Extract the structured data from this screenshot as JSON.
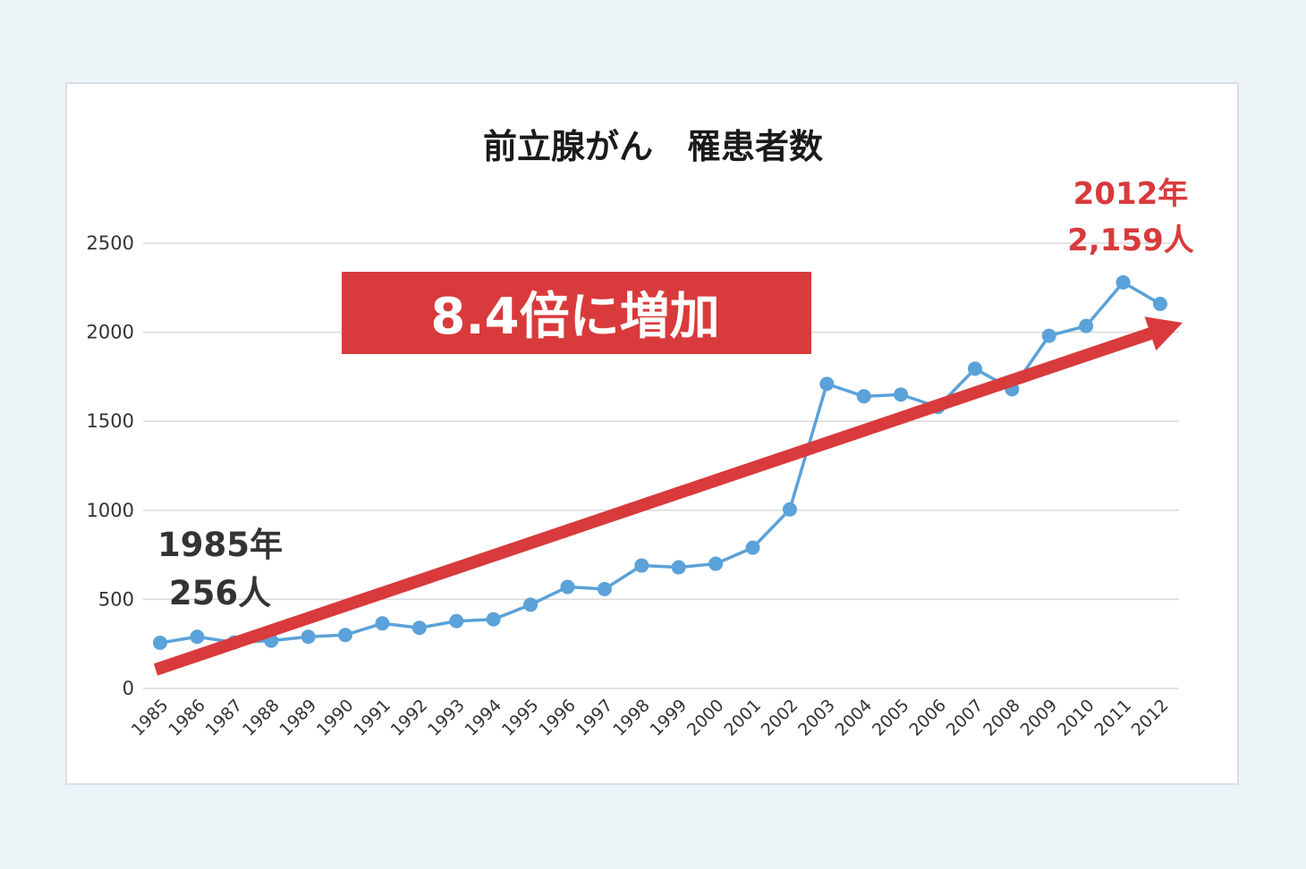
{
  "chart_data": {
    "type": "line",
    "title": "前立腺がん　罹患者数",
    "xlabel": "",
    "ylabel": "",
    "ylim": [
      0,
      2500
    ],
    "yticks": [
      0,
      500,
      1000,
      1500,
      2000,
      2500
    ],
    "grid": true,
    "categories": [
      "1985",
      "1986",
      "1987",
      "1988",
      "1989",
      "1990",
      "1991",
      "1992",
      "1993",
      "1994",
      "1995",
      "1996",
      "1997",
      "1998",
      "1999",
      "2000",
      "2001",
      "2002",
      "2003",
      "2004",
      "2005",
      "2006",
      "2007",
      "2008",
      "2009",
      "2010",
      "2011",
      "2012"
    ],
    "series": [
      {
        "values": [
          256,
          290,
          258,
          268,
          290,
          300,
          365,
          340,
          378,
          388,
          470,
          570,
          558,
          690,
          680,
          700,
          790,
          1005,
          1710,
          1640,
          1650,
          1580,
          1795,
          1680,
          1980,
          2035,
          2280,
          2159
        ]
      }
    ],
    "annotations": {
      "start_line1": "1985年",
      "start_line2": "256人",
      "end_line1": "2012年",
      "end_line2": "2,159人",
      "banner": "8.4倍に増加"
    }
  },
  "colors": {
    "line": "#5aa2d9",
    "marker": "#5aa2d9",
    "accent_red": "#d93a3c",
    "grid": "#d9d9d9",
    "background": "#ecf4f8"
  }
}
